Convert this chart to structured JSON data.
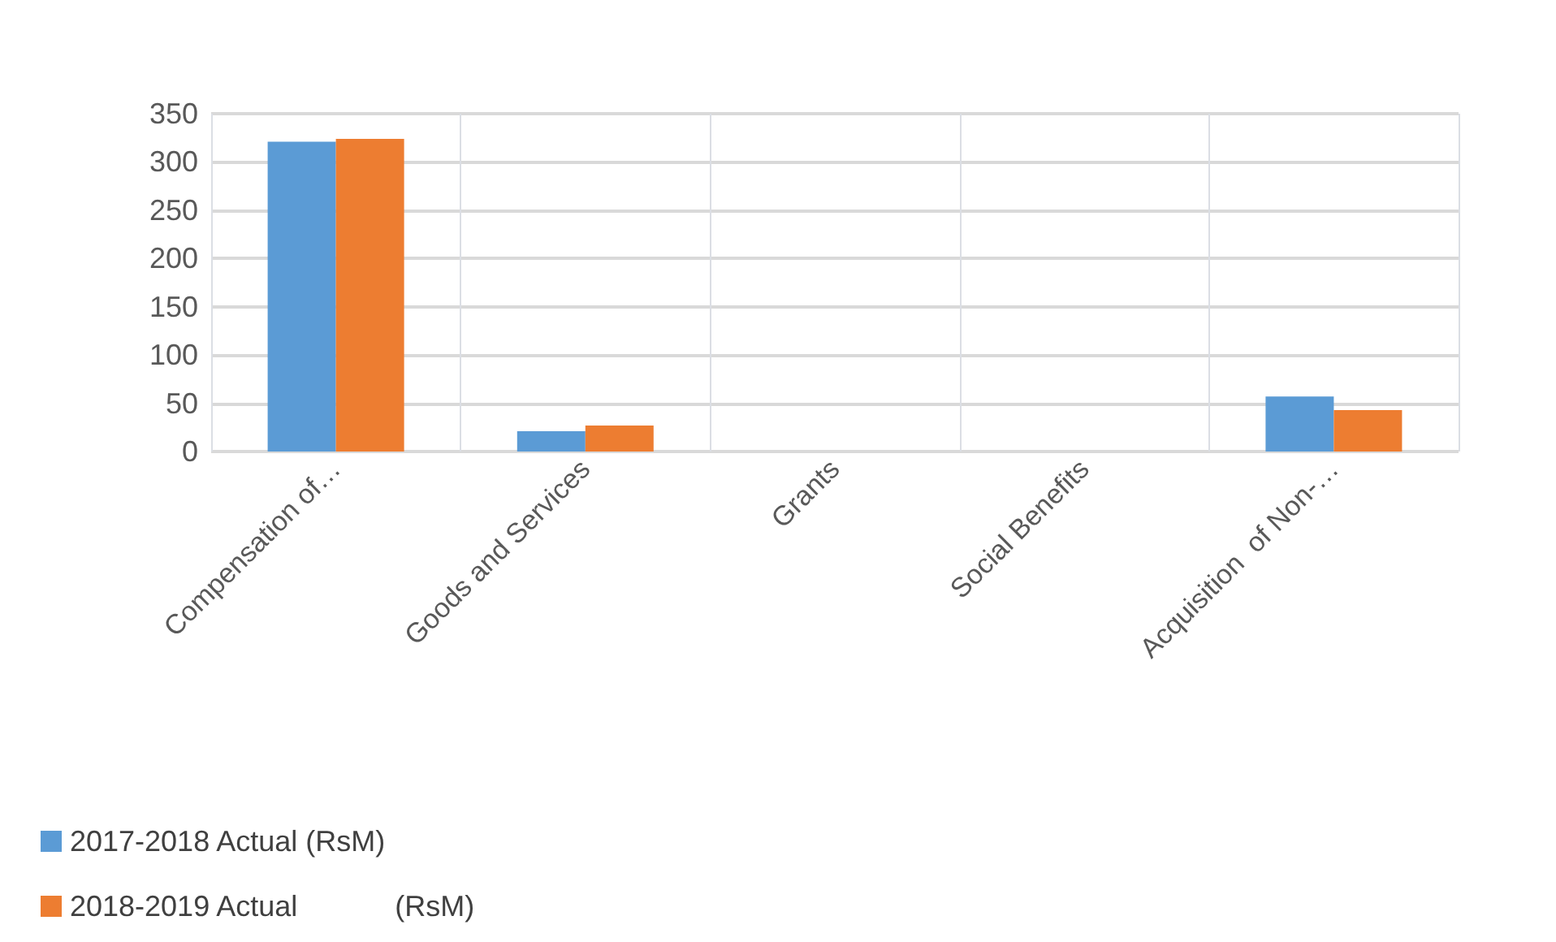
{
  "chart_data": {
    "type": "bar",
    "categories": [
      "Compensation of…",
      "Goods and Services",
      "Grants",
      "Social Benefits",
      "Acquisition  of Non-…"
    ],
    "series": [
      {
        "name": "2017-2018 Actual (RsM)",
        "color": "#5b9bd5",
        "values": [
          321,
          21,
          0,
          0,
          57
        ]
      },
      {
        "name": "2018-2019 Actual            (RsM)",
        "color": "#ed7d31",
        "values": [
          324,
          27,
          0,
          0,
          43
        ]
      }
    ],
    "ylim": [
      0,
      350
    ],
    "yticks": [
      0,
      50,
      100,
      150,
      200,
      250,
      300,
      350
    ],
    "grid": true,
    "legend": "bottom left"
  }
}
